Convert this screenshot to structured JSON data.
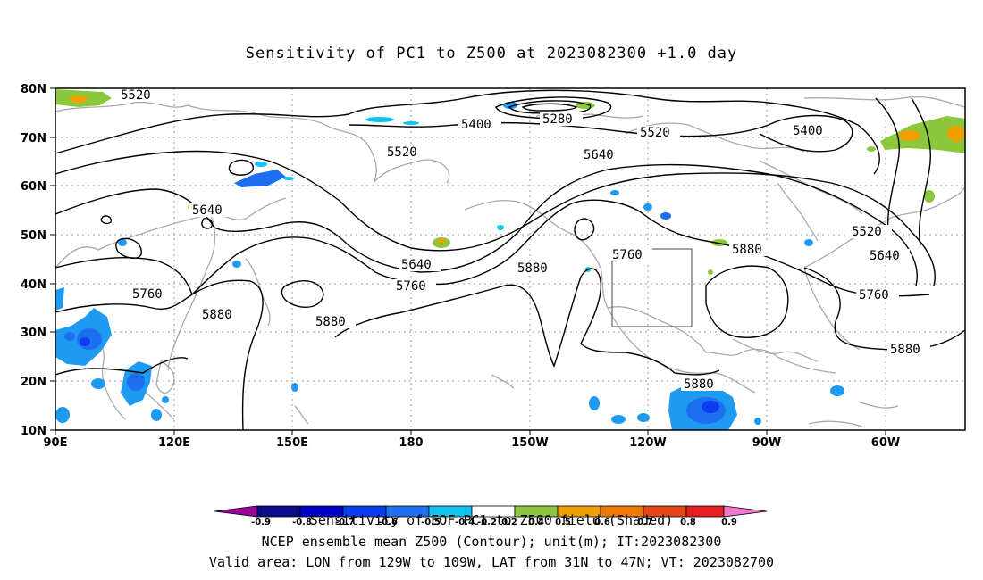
{
  "title": "Sensitivity of PC1 to Z500 at 2023082300 +1.0 day",
  "axes": {
    "lon_labels": [
      "90E",
      "120E",
      "150E",
      "180",
      "150W",
      "120W",
      "90W",
      "60W"
    ],
    "lat_labels": [
      "80N",
      "70N",
      "60N",
      "50N",
      "40N",
      "30N",
      "20N",
      "10N"
    ]
  },
  "contour_labels": [
    "5520",
    "5400",
    "5280",
    "5520",
    "5400",
    "5520",
    "5640",
    "5640",
    "5640",
    "5520",
    "5640",
    "5760",
    "5760",
    "5880",
    "5760",
    "5880",
    "5760",
    "5880",
    "5880",
    "5880",
    "5880"
  ],
  "valid_box": {
    "lon_range": "129W to 109W",
    "lat_range": "31N to 47N"
  },
  "colorbar": {
    "tick_labels": [
      "-0.9",
      "-0.8",
      "-0.7",
      "-0.6",
      "-0.5",
      "-0.4",
      "-0.2",
      "0.2",
      "0.4",
      "0.5",
      "0.6",
      "0.7",
      "0.8",
      "0.9"
    ],
    "colors": [
      "#a0009a",
      "#0b0b8c",
      "#0000c8",
      "#0a3cf0",
      "#1e6ef0",
      "#1e9bf0",
      "#10c3f0",
      "#ffffff",
      "#8cc83c",
      "#f0a000",
      "#f07800",
      "#e64614",
      "#e61e1e",
      "#f078c8"
    ]
  },
  "footer": {
    "legend_title": "Sensitivity of EOF PC1 to Z500 field (Shaded)",
    "line1": "NCEP ensemble mean Z500 (Contour); unit(m); IT:2023082300",
    "line2": "Valid area: LON from 129W to 109W, LAT from 31N to 47N; VT: 2023082700"
  }
}
